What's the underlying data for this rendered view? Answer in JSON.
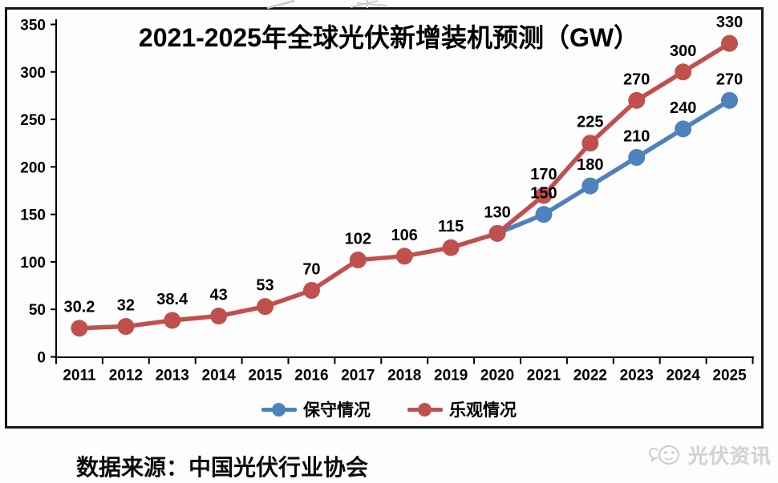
{
  "title": "2021-2025年全球光伏新增装机预测（GW）",
  "source": "数据来源：中国光伏行业协会",
  "watermark": {
    "text": "光伏资讯"
  },
  "colors": {
    "conservative": "#4F81BD",
    "optimistic": "#C0504D",
    "axis": "#000000",
    "frame": "#161616",
    "watermark_gray": "#cccccc"
  },
  "legend": [
    {
      "label": "保守情况",
      "color": "#4F81BD"
    },
    {
      "label": "乐观情况",
      "color": "#C0504D"
    }
  ],
  "chart_data": {
    "type": "line",
    "title": "2021-2025年全球光伏新增装机预测（GW）",
    "categories": [
      "2011",
      "2012",
      "2013",
      "2014",
      "2015",
      "2016",
      "2017",
      "2018",
      "2019",
      "2020",
      "2021",
      "2022",
      "2023",
      "2024",
      "2025"
    ],
    "series": [
      {
        "name": "保守情况",
        "color": "#4F81BD",
        "values": [
          null,
          null,
          null,
          null,
          null,
          null,
          null,
          null,
          null,
          130,
          150,
          180,
          210,
          240,
          270
        ],
        "labels": [
          null,
          null,
          null,
          null,
          null,
          null,
          null,
          null,
          null,
          null,
          "150",
          "180",
          "210",
          "240",
          "270"
        ]
      },
      {
        "name": "乐观情况",
        "color": "#C0504D",
        "values": [
          30.2,
          32,
          38.4,
          43,
          53,
          70,
          102,
          106,
          115,
          130,
          170,
          225,
          270,
          300,
          330
        ],
        "labels": [
          "30.2",
          "32",
          "38.4",
          "43",
          "53",
          "70",
          "102",
          "106",
          "115",
          "130",
          "170",
          "225",
          "270",
          "300",
          "330"
        ]
      }
    ],
    "xlabel": "",
    "ylabel": "",
    "ylim": [
      0,
      350
    ],
    "ytick_step": 50,
    "grid": false,
    "legend_position": "bottom",
    "marker": "circle"
  }
}
